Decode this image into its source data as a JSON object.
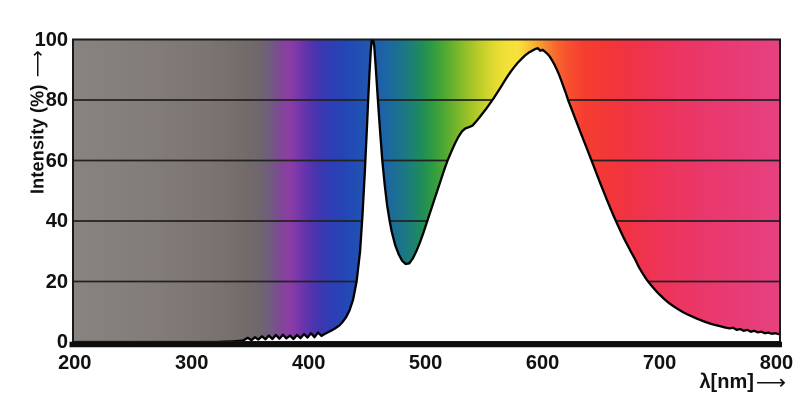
{
  "labels": {
    "y_axis": "Intensity (%)",
    "x_axis": "λ[nm]",
    "arrow": "⟶"
  },
  "chart_data": {
    "type": "area",
    "xlabel": "λ[nm]",
    "ylabel": "Intensity (%)",
    "xlim": [
      198.5,
      803
    ],
    "ylim": [
      0,
      100
    ],
    "x_ticks": [
      200,
      300,
      400,
      500,
      600,
      700,
      800
    ],
    "y_ticks": [
      0,
      20,
      40,
      60,
      80,
      100
    ],
    "grid": {
      "horizontal_lines_at": [
        20,
        40,
        60,
        80
      ],
      "visible_only_above_curve": true,
      "color": "#222222"
    },
    "area_below_curve": "#ffffff",
    "curve_color": "#000000",
    "axis_color": "#0d0d0d",
    "features": {
      "blue_spike_peak_nm": 453,
      "blue_spike_peak_pct": 100,
      "dip_nm": 483,
      "dip_pct": 26,
      "broad_peak_nm": 595,
      "broad_peak_pct": 97
    },
    "points": [
      [
        200,
        0
      ],
      [
        225,
        0
      ],
      [
        250,
        0
      ],
      [
        275,
        0
      ],
      [
        300,
        0
      ],
      [
        320,
        0
      ],
      [
        335,
        0.2
      ],
      [
        344,
        0.5
      ],
      [
        348,
        1.4
      ],
      [
        351,
        0.6
      ],
      [
        354,
        1.6
      ],
      [
        357,
        0.8
      ],
      [
        360,
        1.9
      ],
      [
        363,
        0.9
      ],
      [
        366,
        2.1
      ],
      [
        369,
        1.0
      ],
      [
        372,
        2.3
      ],
      [
        375,
        1.1
      ],
      [
        378,
        2.4
      ],
      [
        381,
        1.2
      ],
      [
        384,
        2.1
      ],
      [
        387,
        1.0
      ],
      [
        390,
        2.3
      ],
      [
        393,
        1.3
      ],
      [
        396,
        2.6
      ],
      [
        399,
        1.5
      ],
      [
        402,
        2.9
      ],
      [
        405,
        1.6
      ],
      [
        408,
        3.1
      ],
      [
        411,
        2.0
      ],
      [
        414,
        2.7
      ],
      [
        417,
        3.3
      ],
      [
        420,
        3.9
      ],
      [
        423,
        4.6
      ],
      [
        426,
        5.4
      ],
      [
        429,
        6.6
      ],
      [
        432,
        8.2
      ],
      [
        435,
        10.5
      ],
      [
        438,
        14
      ],
      [
        441,
        20
      ],
      [
        444,
        30
      ],
      [
        446,
        42
      ],
      [
        448,
        56
      ],
      [
        450,
        72
      ],
      [
        451,
        81
      ],
      [
        452,
        89
      ],
      [
        453,
        96
      ],
      [
        454,
        100
      ],
      [
        455,
        100
      ],
      [
        456,
        98
      ],
      [
        457,
        93
      ],
      [
        458,
        87
      ],
      [
        459,
        81
      ],
      [
        461,
        70
      ],
      [
        463,
        60
      ],
      [
        465,
        52
      ],
      [
        467,
        45.5
      ],
      [
        469,
        40.5
      ],
      [
        471,
        36.5
      ],
      [
        474,
        32
      ],
      [
        477,
        29
      ],
      [
        480,
        26.8
      ],
      [
        483,
        25.8
      ],
      [
        486,
        26
      ],
      [
        489,
        27.6
      ],
      [
        492,
        30
      ],
      [
        495,
        32.8
      ],
      [
        498,
        36
      ],
      [
        501,
        39.5
      ],
      [
        504,
        43
      ],
      [
        507,
        46.5
      ],
      [
        510,
        50
      ],
      [
        513,
        53.5
      ],
      [
        516,
        57
      ],
      [
        519,
        60.2
      ],
      [
        522,
        63
      ],
      [
        525,
        65.6
      ],
      [
        528,
        67.8
      ],
      [
        531,
        69.6
      ],
      [
        534,
        70.6
      ],
      [
        537,
        71
      ],
      [
        540,
        71.5
      ],
      [
        543,
        72.8
      ],
      [
        546,
        74.2
      ],
      [
        549,
        75.7
      ],
      [
        552,
        77.2
      ],
      [
        555,
        78.8
      ],
      [
        558,
        80.5
      ],
      [
        561,
        82.3
      ],
      [
        564,
        84.1
      ],
      [
        567,
        86
      ],
      [
        570,
        87.8
      ],
      [
        573,
        89.5
      ],
      [
        576,
        91
      ],
      [
        579,
        92.4
      ],
      [
        582,
        93.6
      ],
      [
        585,
        94.7
      ],
      [
        588,
        95.6
      ],
      [
        591,
        96.3
      ],
      [
        594,
        96.9
      ],
      [
        596,
        97.1
      ],
      [
        598,
        96.3
      ],
      [
        600,
        96.6
      ],
      [
        602,
        96
      ],
      [
        604,
        95.3
      ],
      [
        606,
        94.4
      ],
      [
        608,
        93.2
      ],
      [
        610,
        91.8
      ],
      [
        612,
        90.2
      ],
      [
        614,
        88.4
      ],
      [
        616,
        86.4
      ],
      [
        618,
        84.3
      ],
      [
        620,
        82.1
      ],
      [
        622,
        79.8
      ],
      [
        625,
        76.8
      ],
      [
        628,
        73.8
      ],
      [
        631,
        70.8
      ],
      [
        634,
        67.8
      ],
      [
        637,
        64.8
      ],
      [
        640,
        61.8
      ],
      [
        643,
        58.8
      ],
      [
        646,
        55.8
      ],
      [
        649,
        52.8
      ],
      [
        652,
        49.9
      ],
      [
        655,
        47
      ],
      [
        658,
        44.2
      ],
      [
        661,
        41.5
      ],
      [
        664,
        38.9
      ],
      [
        667,
        36.4
      ],
      [
        670,
        34
      ],
      [
        673,
        31.7
      ],
      [
        676,
        29.5
      ],
      [
        679,
        27.4
      ],
      [
        682,
        25
      ],
      [
        685,
        23
      ],
      [
        688,
        21.2
      ],
      [
        691,
        19.6
      ],
      [
        694,
        18.2
      ],
      [
        697,
        16.9
      ],
      [
        700,
        15.7
      ],
      [
        704,
        14.2
      ],
      [
        708,
        12.9
      ],
      [
        712,
        11.8
      ],
      [
        716,
        10.8
      ],
      [
        720,
        9.9
      ],
      [
        724,
        9.1
      ],
      [
        728,
        8.4
      ],
      [
        732,
        7.7
      ],
      [
        736,
        7.1
      ],
      [
        740,
        6.5
      ],
      [
        744,
        6.0
      ],
      [
        748,
        5.6
      ],
      [
        752,
        5.2
      ],
      [
        756,
        4.8
      ],
      [
        760,
        4.5
      ],
      [
        763,
        4.7
      ],
      [
        766,
        4.0
      ],
      [
        769,
        4.3
      ],
      [
        772,
        3.7
      ],
      [
        775,
        4.0
      ],
      [
        778,
        3.4
      ],
      [
        781,
        3.7
      ],
      [
        784,
        3.2
      ],
      [
        787,
        3.4
      ],
      [
        790,
        2.9
      ],
      [
        793,
        3.1
      ],
      [
        796,
        2.7
      ],
      [
        799,
        2.9
      ],
      [
        803,
        2.5
      ]
    ],
    "background_spectrum_gradient": [
      {
        "nm": 200,
        "color": "#898380"
      },
      {
        "nm": 262,
        "color": "#837d7a"
      },
      {
        "nm": 315,
        "color": "#7b7471"
      },
      {
        "nm": 342,
        "color": "#746d6a"
      },
      {
        "nm": 358,
        "color": "#6f666b"
      },
      {
        "nm": 368,
        "color": "#715a82"
      },
      {
        "nm": 376,
        "color": "#7f4797"
      },
      {
        "nm": 384,
        "color": "#8c3da4"
      },
      {
        "nm": 392,
        "color": "#7636ab"
      },
      {
        "nm": 400,
        "color": "#5a33ad"
      },
      {
        "nm": 408,
        "color": "#4336b0"
      },
      {
        "nm": 418,
        "color": "#2f3db4"
      },
      {
        "nm": 430,
        "color": "#2545b6"
      },
      {
        "nm": 443,
        "color": "#2150b4"
      },
      {
        "nm": 456,
        "color": "#1f5bad"
      },
      {
        "nm": 468,
        "color": "#1c68a0"
      },
      {
        "nm": 479,
        "color": "#1a748b"
      },
      {
        "nm": 489,
        "color": "#1d8173"
      },
      {
        "nm": 497,
        "color": "#1f8d57"
      },
      {
        "nm": 506,
        "color": "#2f9b42"
      },
      {
        "nm": 516,
        "color": "#4fa834"
      },
      {
        "nm": 526,
        "color": "#74b52c"
      },
      {
        "nm": 538,
        "color": "#9fc427"
      },
      {
        "nm": 549,
        "color": "#c4d02a"
      },
      {
        "nm": 559,
        "color": "#e2da30"
      },
      {
        "nm": 569,
        "color": "#f2e139"
      },
      {
        "nm": 579,
        "color": "#f8e03a"
      },
      {
        "nm": 587,
        "color": "#f9c936"
      },
      {
        "nm": 595,
        "color": "#f9a930"
      },
      {
        "nm": 603,
        "color": "#f8862e"
      },
      {
        "nm": 612,
        "color": "#f8662d"
      },
      {
        "nm": 622,
        "color": "#f7502f"
      },
      {
        "nm": 635,
        "color": "#f53e30"
      },
      {
        "nm": 655,
        "color": "#f23737"
      },
      {
        "nm": 675,
        "color": "#f03345"
      },
      {
        "nm": 695,
        "color": "#ee3354"
      },
      {
        "nm": 715,
        "color": "#ec355f"
      },
      {
        "nm": 735,
        "color": "#ea376a"
      },
      {
        "nm": 760,
        "color": "#e83a73"
      },
      {
        "nm": 785,
        "color": "#e73e7c"
      },
      {
        "nm": 805,
        "color": "#e6427f"
      }
    ]
  }
}
